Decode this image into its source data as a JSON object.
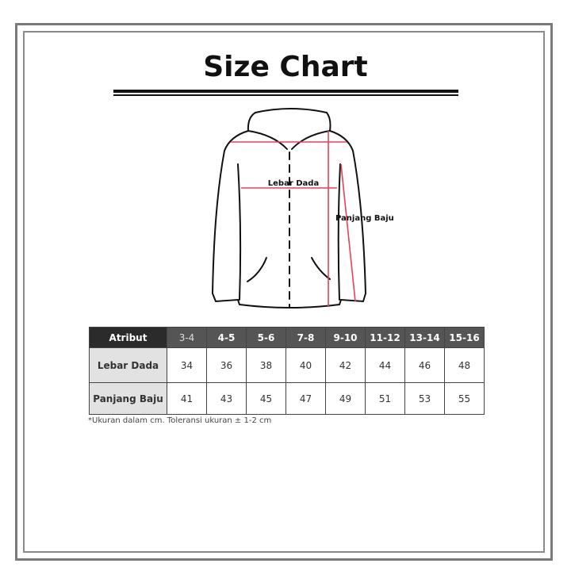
{
  "title": "Size Chart",
  "diagram": {
    "chest_label": "Lebar Dada",
    "length_label": "Panjang Baju",
    "measure_color": "#e8405a"
  },
  "table": {
    "header": "Atribut",
    "sizes": [
      "3-4",
      "4-5",
      "5-6",
      "7-8",
      "9-10",
      "11-12",
      "13-14",
      "15-16"
    ],
    "rows": [
      {
        "label": "Lebar Dada",
        "values": [
          "34",
          "36",
          "38",
          "40",
          "42",
          "44",
          "46",
          "48"
        ]
      },
      {
        "label": "Panjang Baju",
        "values": [
          "41",
          "43",
          "45",
          "47",
          "49",
          "51",
          "53",
          "55"
        ]
      }
    ]
  },
  "note": "*Ukuran dalam cm. Toleransi ukuran ± 1-2 cm"
}
